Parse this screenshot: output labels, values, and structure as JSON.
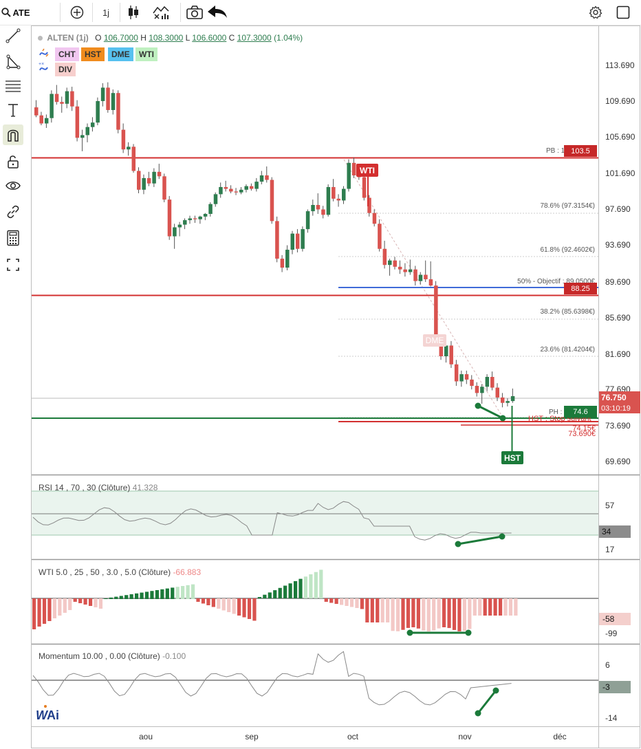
{
  "toolbar": {
    "symbol": "ATE",
    "interval": "1j"
  },
  "legend": {
    "name": "ALTEN (1j)",
    "o_label": "O",
    "o": "106.7000",
    "h_label": "H",
    "h": "108.3000",
    "l_label": "L",
    "l": "106.6000",
    "c_label": "C",
    "c": "107.3000",
    "chg": "(1.04%)"
  },
  "indicators": [
    "CHT",
    "HST",
    "DME",
    "WTI",
    "DIV"
  ],
  "price_axis": [
    "113.690",
    "109.690",
    "105.690",
    "101.690",
    "97.690",
    "93.690",
    "89.690",
    "85.690",
    "81.690",
    "77.690",
    "73.690",
    "69.690"
  ],
  "last_price": {
    "value": "76.750",
    "countdown": "03:10:19"
  },
  "levels": {
    "pb_label": "PB : 1",
    "pb_value": "103.5",
    "fib786": "78.6% (97.3154€)",
    "fib618": "61.8% (92.4602€)",
    "fib50": "50% - Objectif : 89.0500€",
    "s_value": "88.25",
    "fib382": "38.2% (85.6398€)",
    "fib236": "23.6% (81.4204€)",
    "ph_label": "PH :",
    "ph_value": "74.6",
    "hst_text": "HST : Stop suivant",
    "stop1": "74.15€",
    "stop2": "73.690€"
  },
  "signals": {
    "wti": "WTI",
    "dme": "DME",
    "hst": "HST"
  },
  "rsi": {
    "label": "RSI 14 , 70 , 30 (Clôture)",
    "value": "41.328",
    "axis": [
      "57",
      "17"
    ],
    "badge": "34"
  },
  "wti_panel": {
    "label": "WTI 5.0 , 25 , 50 , 3.0 , 5.0 (Clôture)",
    "value": "-66.883",
    "axis": [
      "-99"
    ],
    "badge": "-58"
  },
  "momentum": {
    "label": "Momentum 10.00 , 0.00 (Clôture)",
    "value": "-0.100",
    "axis": [
      "6",
      "-14"
    ],
    "badge": "-3"
  },
  "time_axis": [
    "aou",
    "sep",
    "oct",
    "nov",
    "déc"
  ],
  "colors": {
    "up": "#2e7d4f",
    "down": "#d9534f",
    "accent_red": "#d32f2f",
    "accent_green": "#1b7a3a",
    "blue": "#3f6ad8"
  },
  "candles": [
    [
      109.0,
      109.8,
      107.9,
      108.1
    ],
    [
      108.1,
      108.5,
      107.0,
      107.2
    ],
    [
      107.2,
      108.2,
      106.7,
      107.8
    ],
    [
      107.8,
      110.9,
      107.3,
      110.5
    ],
    [
      110.5,
      111.5,
      109.3,
      109.6
    ],
    [
      109.6,
      110.2,
      108.4,
      109.4
    ],
    [
      109.4,
      111.2,
      108.9,
      110.8
    ],
    [
      110.8,
      111.3,
      108.6,
      109.1
    ],
    [
      109.1,
      109.8,
      105.2,
      105.6
    ],
    [
      105.6,
      106.5,
      104.1,
      105.9
    ],
    [
      105.9,
      107.2,
      105.1,
      106.8
    ],
    [
      106.8,
      107.9,
      106.3,
      107.3
    ],
    [
      107.3,
      110.1,
      107.0,
      109.7
    ],
    [
      109.7,
      111.7,
      109.1,
      111.2
    ],
    [
      111.2,
      111.8,
      108.4,
      108.7
    ],
    [
      108.7,
      111.0,
      108.2,
      110.6
    ],
    [
      110.6,
      110.9,
      106.1,
      106.5
    ],
    [
      106.5,
      107.2,
      103.9,
      104.3
    ],
    [
      104.3,
      105.1,
      103.6,
      104.6
    ],
    [
      104.6,
      104.9,
      101.7,
      101.9
    ],
    [
      101.9,
      102.3,
      99.4,
      99.8
    ],
    [
      99.8,
      101.5,
      99.3,
      101.1
    ],
    [
      101.1,
      101.8,
      100.2,
      100.5
    ],
    [
      100.5,
      102.2,
      100.1,
      101.8
    ],
    [
      101.8,
      102.7,
      101.0,
      101.3
    ],
    [
      101.3,
      101.6,
      98.4,
      98.7
    ],
    [
      98.7,
      99.1,
      94.2,
      94.6
    ],
    [
      94.6,
      96.0,
      93.2,
      95.6
    ],
    [
      95.6,
      96.2,
      94.6,
      95.9
    ],
    [
      95.9,
      96.6,
      95.4,
      96.4
    ],
    [
      96.4,
      96.9,
      96.0,
      96.6
    ],
    [
      96.6,
      96.9,
      96.1,
      96.5
    ],
    [
      96.5,
      96.9,
      96.0,
      96.8
    ],
    [
      96.8,
      97.2,
      96.4,
      97.1
    ],
    [
      97.1,
      98.4,
      96.8,
      98.2
    ],
    [
      98.2,
      99.5,
      97.9,
      99.3
    ],
    [
      99.3,
      100.6,
      98.9,
      100.1
    ],
    [
      100.1,
      100.8,
      99.6,
      99.9
    ],
    [
      99.9,
      100.3,
      99.4,
      99.6
    ],
    [
      99.6,
      100.0,
      99.2,
      99.5
    ],
    [
      99.5,
      100.1,
      99.3,
      99.8
    ],
    [
      99.8,
      100.4,
      99.5,
      100.2
    ],
    [
      100.2,
      100.5,
      99.7,
      99.9
    ],
    [
      99.9,
      101.1,
      99.6,
      100.7
    ],
    [
      100.7,
      101.9,
      100.4,
      101.4
    ],
    [
      101.4,
      102.4,
      100.6,
      100.9
    ],
    [
      100.9,
      101.2,
      96.0,
      96.3
    ],
    [
      96.3,
      96.8,
      91.7,
      92.1
    ],
    [
      92.1,
      92.5,
      90.6,
      91.1
    ],
    [
      91.1,
      93.6,
      90.8,
      93.1
    ],
    [
      93.1,
      95.2,
      92.6,
      94.9
    ],
    [
      94.9,
      95.4,
      92.8,
      93.2
    ],
    [
      93.2,
      95.7,
      92.9,
      95.4
    ],
    [
      95.4,
      97.6,
      95.0,
      97.4
    ],
    [
      97.4,
      98.7,
      96.9,
      98.1
    ],
    [
      98.1,
      99.4,
      97.1,
      97.6
    ],
    [
      97.6,
      98.0,
      96.6,
      97.0
    ],
    [
      97.0,
      100.4,
      96.8,
      100.1
    ],
    [
      100.1,
      101.0,
      98.5,
      98.8
    ],
    [
      98.8,
      99.3,
      97.9,
      98.6
    ],
    [
      98.6,
      100.2,
      98.2,
      99.9
    ],
    [
      99.9,
      103.2,
      99.6,
      102.8
    ],
    [
      102.8,
      103.4,
      101.1,
      101.4
    ],
    [
      101.4,
      101.8,
      100.9,
      101.2
    ],
    [
      101.2,
      101.5,
      98.6,
      98.9
    ],
    [
      98.9,
      99.2,
      96.8,
      97.2
    ],
    [
      97.2,
      97.6,
      95.7,
      96.0
    ],
    [
      96.0,
      96.5,
      92.9,
      93.2
    ],
    [
      93.2,
      94.1,
      91.0,
      91.4
    ],
    [
      91.4,
      92.1,
      90.2,
      91.9
    ],
    [
      91.9,
      92.3,
      90.9,
      91.2
    ],
    [
      91.2,
      91.9,
      90.4,
      90.9
    ],
    [
      90.9,
      91.6,
      90.1,
      90.6
    ],
    [
      90.6,
      92.0,
      90.3,
      90.9
    ],
    [
      90.9,
      91.3,
      89.1,
      89.6
    ],
    [
      89.6,
      90.6,
      89.2,
      90.3
    ],
    [
      90.3,
      91.9,
      89.5,
      89.8
    ],
    [
      89.8,
      91.8,
      89.0,
      89.1
    ],
    [
      89.1,
      89.6,
      82.6,
      83.1
    ],
    [
      83.1,
      83.4,
      80.8,
      81.2
    ],
    [
      81.2,
      82.6,
      80.5,
      82.4
    ],
    [
      82.4,
      82.9,
      79.9,
      80.3
    ],
    [
      80.3,
      80.8,
      77.9,
      78.4
    ],
    [
      78.4,
      79.6,
      77.8,
      79.2
    ],
    [
      79.2,
      79.6,
      78.1,
      78.6
    ],
    [
      78.6,
      79.1,
      77.5,
      77.9
    ],
    [
      77.9,
      78.3,
      76.7,
      77.1
    ],
    [
      77.1,
      78.1,
      75.9,
      77.8
    ],
    [
      77.8,
      79.2,
      77.3,
      78.9
    ],
    [
      78.9,
      79.5,
      77.4,
      77.7
    ],
    [
      77.7,
      78.2,
      76.2,
      76.6
    ],
    [
      76.6,
      77.1,
      75.5,
      76.0
    ],
    [
      76.0,
      76.5,
      75.6,
      76.2
    ],
    [
      76.2,
      77.6,
      76.0,
      76.75
    ]
  ]
}
